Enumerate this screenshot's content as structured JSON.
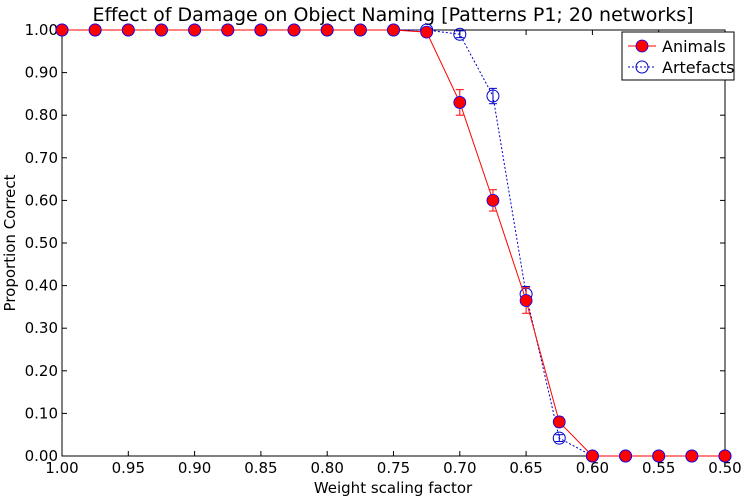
{
  "chart_data": {
    "type": "line",
    "title": "Effect of Damage on Object Naming [Patterns P1; 20 networks]",
    "xlabel": "Weight scaling factor",
    "ylabel": "Proportion Correct",
    "xlim": [
      1.0,
      0.5
    ],
    "ylim": [
      0.0,
      1.0
    ],
    "x_reversed": true,
    "grid": false,
    "legend_position": "top-right",
    "x_ticks": [
      "1.00",
      "0.95",
      "0.90",
      "0.85",
      "0.80",
      "0.75",
      "0.70",
      "0.65",
      "0.60",
      "0.55",
      "0.50"
    ],
    "y_ticks": [
      "0.00",
      "0.10",
      "0.20",
      "0.30",
      "0.40",
      "0.50",
      "0.60",
      "0.70",
      "0.80",
      "0.90",
      "1.00"
    ],
    "x": [
      1.0,
      0.975,
      0.95,
      0.925,
      0.9,
      0.875,
      0.85,
      0.825,
      0.8,
      0.775,
      0.75,
      0.725,
      0.7,
      0.675,
      0.65,
      0.625,
      0.6,
      0.575,
      0.55,
      0.525,
      0.5
    ],
    "series": [
      {
        "name": "Animals",
        "color": "#ff0000",
        "marker": "filled-circle",
        "line_style": "solid",
        "values": [
          1.0,
          1.0,
          1.0,
          1.0,
          1.0,
          1.0,
          1.0,
          1.0,
          1.0,
          1.0,
          1.0,
          0.995,
          0.83,
          0.6,
          0.365,
          0.08,
          0.0,
          0.0,
          0.0,
          0.0,
          0.0
        ],
        "errors": [
          0,
          0,
          0,
          0,
          0,
          0,
          0,
          0,
          0,
          0,
          0,
          0.004,
          0.03,
          0.025,
          0.03,
          0.012,
          0,
          0,
          0,
          0,
          0
        ]
      },
      {
        "name": "Artefacts",
        "color": "#0000cc",
        "marker": "open-circle",
        "line_style": "dotted",
        "values": [
          1.0,
          1.0,
          1.0,
          1.0,
          1.0,
          1.0,
          1.0,
          1.0,
          1.0,
          1.0,
          1.0,
          1.0,
          0.99,
          0.845,
          0.38,
          0.042,
          0.0,
          0.0,
          0.0,
          0.0,
          0.0
        ],
        "errors": [
          0,
          0,
          0,
          0,
          0,
          0,
          0,
          0,
          0,
          0,
          0,
          0,
          0.008,
          0.018,
          0.018,
          0.008,
          0,
          0,
          0,
          0,
          0
        ]
      }
    ]
  }
}
